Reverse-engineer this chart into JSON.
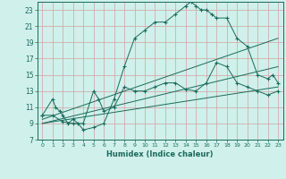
{
  "bg_color": "#cff0eb",
  "grid_color": "#d4a0a0",
  "line_color": "#1a6b5a",
  "xlim": [
    -0.5,
    23.5
  ],
  "ylim": [
    7,
    24
  ],
  "xticks": [
    0,
    1,
    2,
    3,
    4,
    5,
    6,
    7,
    8,
    9,
    10,
    11,
    12,
    13,
    14,
    15,
    16,
    17,
    18,
    19,
    20,
    21,
    22,
    23
  ],
  "yticks": [
    7,
    9,
    11,
    13,
    15,
    17,
    19,
    21,
    23
  ],
  "xlabel": "Humidex (Indice chaleur)",
  "curves": [
    {
      "x": [
        0,
        1,
        1.3,
        1.7,
        2,
        2.5,
        3,
        3.5,
        4,
        5,
        6,
        7,
        8,
        9,
        10,
        11,
        12,
        13,
        14,
        14.5,
        15,
        15.5,
        16,
        16.5,
        17,
        18,
        19,
        20,
        21,
        22,
        22.5,
        23
      ],
      "y": [
        10,
        12,
        11,
        10.5,
        10,
        9,
        9.5,
        9,
        8.2,
        8.5,
        9,
        12,
        16,
        19.5,
        20.5,
        21.5,
        21.5,
        22.5,
        23.5,
        24,
        23.5,
        23,
        23,
        22.5,
        22,
        22,
        19.5,
        18.5,
        15,
        14.5,
        15,
        14
      ],
      "marker": true
    },
    {
      "x": [
        0,
        1,
        2,
        3,
        4,
        5,
        5.5,
        6,
        7,
        8,
        9,
        10,
        11,
        12,
        13,
        14,
        15,
        16,
        17,
        18,
        19,
        20,
        21,
        22,
        23
      ],
      "y": [
        10,
        10,
        9.2,
        9,
        9,
        13,
        12,
        10.5,
        11,
        13.5,
        13,
        13,
        13.5,
        14,
        14,
        13.2,
        13,
        14,
        16.5,
        16,
        14,
        13.5,
        13,
        12.5,
        13
      ],
      "marker": true
    },
    {
      "x": [
        0,
        23
      ],
      "y": [
        9.5,
        19.5
      ],
      "marker": false
    },
    {
      "x": [
        0,
        23
      ],
      "y": [
        9.0,
        16.0
      ],
      "marker": false
    },
    {
      "x": [
        0,
        23
      ],
      "y": [
        9.0,
        13.5
      ],
      "marker": false
    }
  ]
}
